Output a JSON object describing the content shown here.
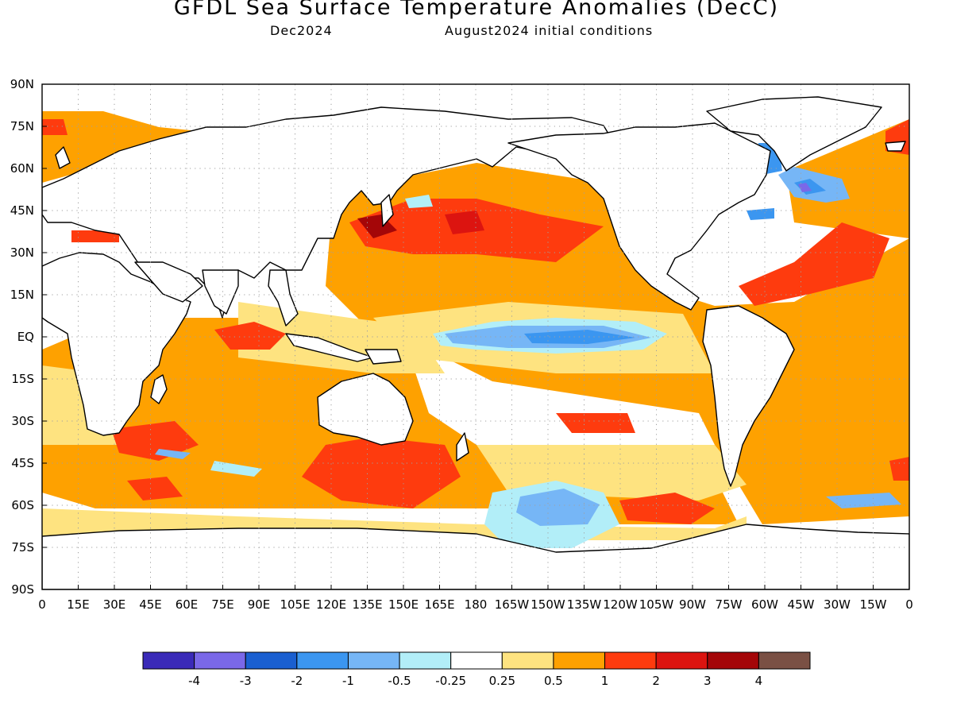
{
  "title": "GFDL Sea Surface Temperature Anomalies (DecC)",
  "subtitle_left": "Dec2024",
  "subtitle_right": "August2024 initial conditions",
  "lat_labels": [
    "90N",
    "75N",
    "60N",
    "45N",
    "30N",
    "15N",
    "EQ",
    "15S",
    "30S",
    "45S",
    "60S",
    "75S",
    "90S"
  ],
  "lon_labels": [
    "0",
    "15E",
    "30E",
    "45E",
    "60E",
    "75E",
    "90E",
    "105E",
    "120E",
    "135E",
    "150E",
    "165E",
    "180",
    "165W",
    "150W",
    "135W",
    "120W",
    "105W",
    "90W",
    "75W",
    "60W",
    "45W",
    "30W",
    "15W",
    "0"
  ],
  "colorbar": {
    "labels": [
      "-4",
      "-3",
      "-2",
      "-1",
      "-0.5",
      "-0.25",
      "0.25",
      "0.5",
      "1",
      "2",
      "3",
      "4"
    ],
    "colors": [
      "#3a2ab8",
      "#7a68e8",
      "#1a5fd0",
      "#3b96f0",
      "#76b6f6",
      "#b2eef8",
      "#ffffff",
      "#fee380",
      "#fea100",
      "#fe3b0e",
      "#dc1410",
      "#a40608",
      "#7a5044"
    ]
  },
  "anomaly_colors": {
    "neg_strong": "#3b96f0",
    "neg_mid": "#76b6f6",
    "neg_weak": "#b2eef8",
    "pos_weak": "#fee380",
    "pos_mid": "#fea100",
    "pos_strong": "#fe3b0e",
    "pos_vstrong": "#dc1410",
    "pos_extreme": "#a40608",
    "purple": "#7a68e8"
  }
}
